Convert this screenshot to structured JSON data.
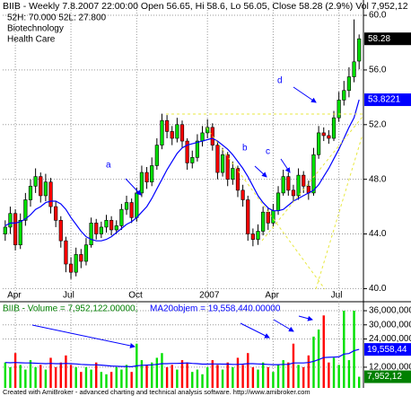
{
  "chart_data": [
    {
      "type": "candlestick",
      "title": "BIIB - Weekly 7.8.2007 22:00:00 Open 56.65, Hi 58.6, Lo 56.05, Close 58.28 (2.9%) Vol 7,952,12",
      "subtitles": [
        "52H: 70.000 52L: 27.800",
        "Biotechnology",
        "Health Care"
      ],
      "annotations": [
        "a",
        "b",
        "c",
        "d"
      ],
      "categories": [
        null,
        null,
        "Apr",
        null,
        null,
        null,
        null,
        null,
        null,
        null,
        null,
        null,
        null,
        "Jul",
        null,
        null,
        null,
        null,
        null,
        null,
        null,
        null,
        null,
        null,
        null,
        null,
        "Oct",
        null,
        null,
        null,
        null,
        null,
        null,
        null,
        null,
        null,
        null,
        null,
        null,
        null,
        "2007",
        null,
        null,
        null,
        null,
        null,
        null,
        null,
        null,
        null,
        null,
        null,
        null,
        "Apr",
        null,
        null,
        null,
        null,
        null,
        null,
        null,
        null,
        null,
        null,
        null,
        null,
        "Jul",
        null,
        null,
        null,
        null
      ],
      "open": [
        44.0,
        44.5,
        45.5,
        43.2,
        45.0,
        46.5,
        47.5,
        48.2,
        46.8,
        47.8,
        46.0,
        45.0,
        43.5,
        41.8,
        41.2,
        42.5,
        42.0,
        43.2,
        44.8,
        44.0,
        44.5,
        45.0,
        44.3,
        44.6,
        45.8,
        46.3,
        45.2,
        47.0,
        48.5,
        47.8,
        49.0,
        50.5,
        52.3,
        51.5,
        51.0,
        52.0,
        50.8,
        49.2,
        49.6,
        50.8,
        51.4,
        51.8,
        50.5,
        48.5,
        49.8,
        48.0,
        48.8,
        47.2,
        46.5,
        44.0,
        43.6,
        44.2,
        45.6,
        44.8,
        45.7,
        47.0,
        48.2,
        47.2,
        46.8,
        48.3,
        47.5,
        47.0,
        49.8,
        51.4,
        51.2,
        51.0,
        52.5,
        53.8,
        54.5,
        55.5,
        56.65
      ],
      "high": [
        45.0,
        46.0,
        45.8,
        45.5,
        47.0,
        48.0,
        48.8,
        48.5,
        48.4,
        48.1,
        46.4,
        45.3,
        43.8,
        42.3,
        43.0,
        42.9,
        43.7,
        45.2,
        45.1,
        44.9,
        45.4,
        45.3,
        45.0,
        46.2,
        46.8,
        46.6,
        47.4,
        49.0,
        48.9,
        49.6,
        51.0,
        52.8,
        52.7,
        51.9,
        52.5,
        52.3,
        51.0,
        50.1,
        51.3,
        51.9,
        52.4,
        52.1,
        50.8,
        50.3,
        50.0,
        49.3,
        49.0,
        47.6,
        46.8,
        44.4,
        44.7,
        46.0,
        45.9,
        46.2,
        47.5,
        48.7,
        48.5,
        47.6,
        48.8,
        48.6,
        47.9,
        50.3,
        51.9,
        51.8,
        51.6,
        53.0,
        54.4,
        55.2,
        56.2,
        59.7,
        58.6
      ],
      "low": [
        43.5,
        44.0,
        42.8,
        42.9,
        44.6,
        46.0,
        47.0,
        46.3,
        46.4,
        45.5,
        44.5,
        43.0,
        41.2,
        40.7,
        40.9,
        41.5,
        41.7,
        43.0,
        43.6,
        43.7,
        44.1,
        43.9,
        44.0,
        44.3,
        45.4,
        44.8,
        44.9,
        46.7,
        47.3,
        47.5,
        48.7,
        50.2,
        51.0,
        50.5,
        50.7,
        50.3,
        48.7,
        48.8,
        49.3,
        50.4,
        51.0,
        50.1,
        48.0,
        48.2,
        47.5,
        47.6,
        46.7,
        46.0,
        43.5,
        43.1,
        43.2,
        43.9,
        44.3,
        44.5,
        45.4,
        46.8,
        46.8,
        46.4,
        46.5,
        47.0,
        46.5,
        46.8,
        49.5,
        50.8,
        50.6,
        50.8,
        52.2,
        53.4,
        54.0,
        55.1,
        56.05
      ],
      "close": [
        44.5,
        45.5,
        43.2,
        45.0,
        46.5,
        47.5,
        48.2,
        46.8,
        47.8,
        46.0,
        45.0,
        43.5,
        41.8,
        41.2,
        42.5,
        42.0,
        43.2,
        44.8,
        44.0,
        44.5,
        45.0,
        44.3,
        44.6,
        45.8,
        46.3,
        45.2,
        47.0,
        48.5,
        47.8,
        49.0,
        50.5,
        52.3,
        51.5,
        51.0,
        52.0,
        50.8,
        49.2,
        49.6,
        50.8,
        51.4,
        51.8,
        50.5,
        48.5,
        49.8,
        48.0,
        48.8,
        47.2,
        46.5,
        44.0,
        43.6,
        44.2,
        45.6,
        44.8,
        45.7,
        47.0,
        48.2,
        47.2,
        46.8,
        48.3,
        47.5,
        47.0,
        49.8,
        51.4,
        51.2,
        51.0,
        52.5,
        53.8,
        54.5,
        55.5,
        56.6,
        58.28
      ],
      "up_color": "#00e000",
      "down_color": "#ff0000",
      "moving_average": {
        "color": "#0000ff",
        "values": [
          44.6,
          44.8,
          44.8,
          44.9,
          45.1,
          45.4,
          45.8,
          46.0,
          46.3,
          46.4,
          46.4,
          46.2,
          45.8,
          45.2,
          44.7,
          44.2,
          43.8,
          43.6,
          43.5,
          43.5,
          43.6,
          43.8,
          44.1,
          44.4,
          44.7,
          44.9,
          45.2,
          45.6,
          46.0,
          46.6,
          47.3,
          48.0,
          48.7,
          49.3,
          49.9,
          50.3,
          50.5,
          50.6,
          50.7,
          50.8,
          50.9,
          51.0,
          50.8,
          50.5,
          50.2,
          49.8,
          49.3,
          48.8,
          48.2,
          47.5,
          46.8,
          46.3,
          45.9,
          45.7,
          45.7,
          45.8,
          46.1,
          46.4,
          46.6,
          46.8,
          47.0,
          47.2,
          47.6,
          48.2,
          48.8,
          49.5,
          50.2,
          51.0,
          51.8,
          52.5,
          53.8221
        ]
      },
      "ylim": [
        39.7,
        60.2
      ],
      "yticks": [
        {
          "value": 40,
          "label": "40.0"
        },
        {
          "value": 44,
          "label": "44.0"
        },
        {
          "value": 48,
          "label": "48.0"
        },
        {
          "value": 52,
          "label": "52.0"
        },
        {
          "value": 56,
          "label": "56.0"
        },
        {
          "value": 60,
          "label": "60.0"
        }
      ],
      "grid": true
    },
    {
      "type": "bar",
      "title_parts": [
        "BIIB - Volume = 7,952,122.00000,",
        "MA20objem = 19,558,440.00000"
      ],
      "values": [
        14000000,
        12000000,
        18000000,
        13000000,
        11000000,
        15000000,
        12000000,
        13000000,
        11000000,
        16000000,
        12000000,
        14000000,
        17000000,
        13000000,
        12000000,
        10000000,
        12000000,
        11000000,
        14000000,
        10000000,
        9000000,
        10000000,
        12000000,
        11000000,
        13000000,
        10000000,
        22000000,
        15000000,
        13000000,
        14000000,
        16000000,
        18000000,
        12000000,
        13000000,
        11000000,
        15000000,
        14000000,
        10000000,
        11000000,
        9000000,
        12000000,
        15000000,
        13000000,
        11000000,
        14000000,
        12000000,
        16000000,
        13000000,
        18000000,
        12000000,
        11000000,
        14000000,
        12000000,
        10000000,
        13000000,
        15000000,
        14000000,
        22000000,
        13000000,
        12000000,
        17000000,
        25000000,
        28000000,
        34000000,
        14000000,
        16000000,
        13000000,
        36000000,
        15000000,
        36000000,
        7952122
      ],
      "moving_average": {
        "color": "#0000ff",
        "values": [
          14000000,
          13900000,
          14000000,
          13900000,
          13800000,
          13800000,
          13700000,
          13600000,
          13500000,
          13600000,
          13500000,
          13500000,
          13600000,
          13500000,
          13400000,
          13200000,
          13100000,
          13000000,
          13000000,
          12900000,
          12700000,
          12500000,
          12400000,
          12300000,
          12300000,
          12200000,
          12600000,
          12800000,
          12900000,
          13000000,
          13200000,
          13500000,
          13500000,
          13600000,
          13600000,
          13700000,
          13800000,
          13600000,
          13500000,
          13300000,
          13300000,
          13400000,
          13400000,
          13300000,
          13300000,
          13200000,
          13200000,
          13300000,
          13500000,
          13500000,
          13400000,
          13300000,
          13200000,
          13100000,
          13100000,
          13200000,
          13200000,
          13800000,
          13800000,
          13800000,
          14000000,
          14500000,
          15200000,
          16100000,
          16200000,
          16300000,
          16400000,
          17600000,
          17800000,
          19000000,
          19558440
        ]
      },
      "marker_labels": [
        {
          "value": 19558440,
          "label": "19,558,44"
        },
        {
          "value": 7952122,
          "label": "7,952,12"
        }
      ],
      "ylim": [
        3200000,
        38300000
      ],
      "yticks": [
        {
          "value": 12000000,
          "label": "12,000,000"
        },
        {
          "value": 24000000,
          "label": "24,000,000"
        },
        {
          "value": 30000000,
          "label": "30,000,000"
        },
        {
          "value": 36000000,
          "label": "36,000,000"
        }
      ],
      "grid": true
    }
  ],
  "footer": "Created with AmiBroker - advanced charting and technical analysis software. http://www.amibroker.com"
}
